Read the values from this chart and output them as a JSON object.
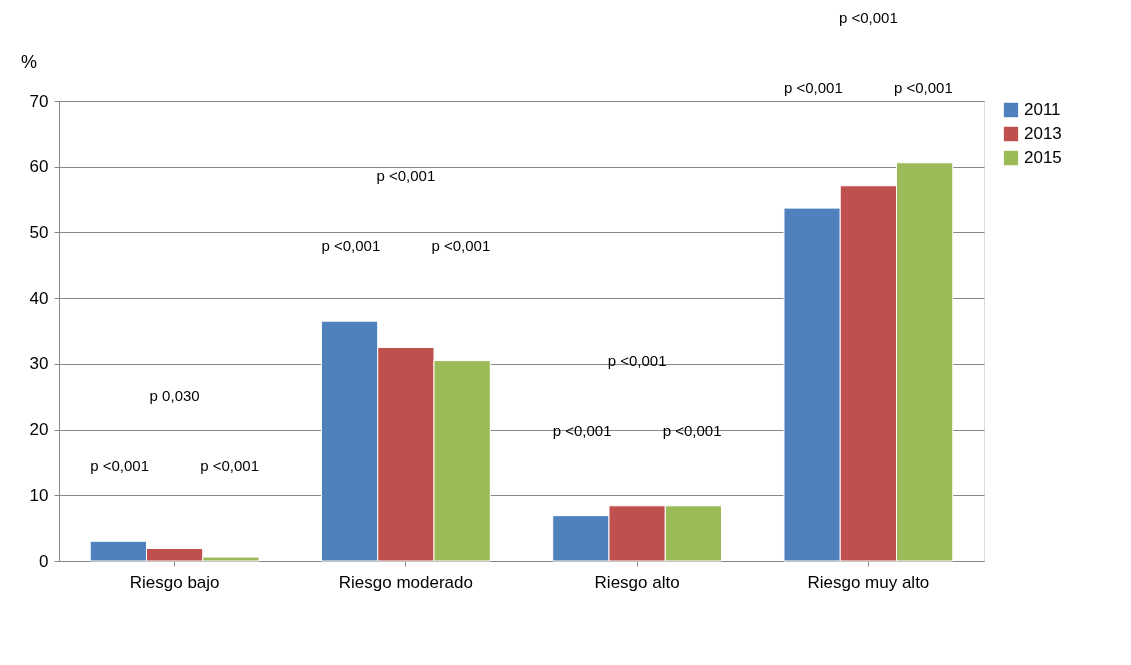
{
  "chart_data": {
    "type": "bar",
    "ylabel": "%",
    "categories": [
      "Riesgo bajo",
      "Riesgo moderado",
      "Riesgo alto",
      "Riesgo muy alto"
    ],
    "series": [
      {
        "name": "2011",
        "color": "#4f81bd",
        "values": [
          3.0,
          36.5,
          6.9,
          53.7
        ]
      },
      {
        "name": "2013",
        "color": "#c0504d",
        "values": [
          1.9,
          32.5,
          8.4,
          57.1
        ]
      },
      {
        "name": "2015",
        "color": "#9bbb59",
        "values": [
          0.6,
          30.5,
          8.4,
          60.6
        ]
      }
    ],
    "ylim": [
      0,
      70
    ],
    "yticks": [
      0,
      10,
      20,
      30,
      40,
      50,
      60,
      70
    ],
    "grid": "y",
    "legend": "right",
    "annotations": [
      "p 0,030",
      "p <0,001",
      "p <0,001",
      "p <0,001",
      "p <0,001",
      "p <0,001",
      "p <0,001",
      "p <0,001",
      "p <0,001",
      "p <0,001",
      "p <0,001",
      "p <0,001"
    ]
  }
}
